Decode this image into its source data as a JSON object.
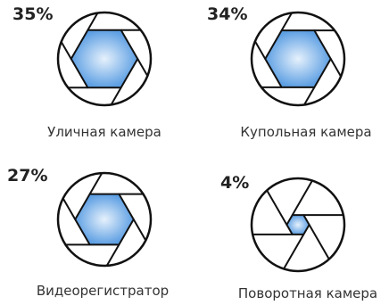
{
  "chart_data": {
    "type": "aperture",
    "categories": [
      "Уличная камера",
      "Купольная камера",
      "Видеорегистратор",
      "Поворотная камера"
    ],
    "values": [
      35,
      34,
      27,
      4
    ],
    "value_labels": [
      "35%",
      "34%",
      "27%",
      "4%"
    ],
    "color": "#5d9fe3"
  }
}
